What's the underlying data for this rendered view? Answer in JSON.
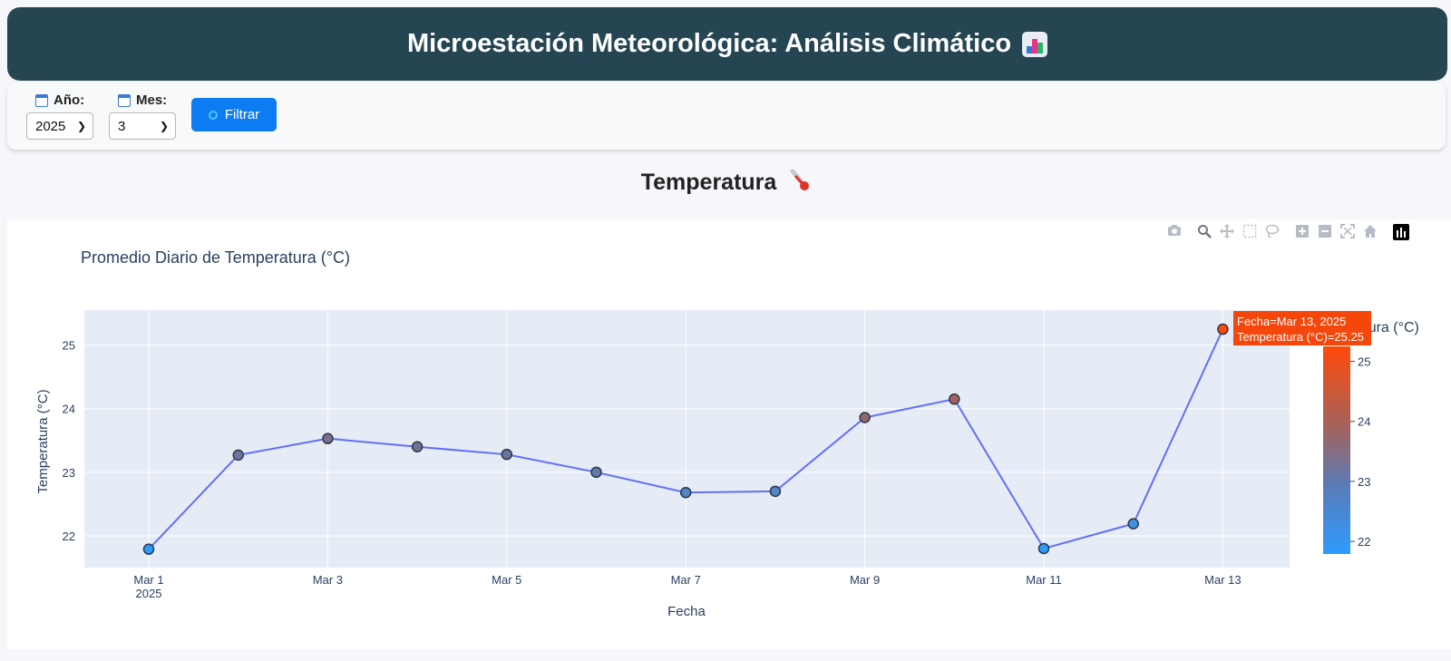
{
  "header": {
    "title": "Microestación Meteorológica: Análisis Climático",
    "title_icon": "bar-chart-emoji-icon"
  },
  "filters": {
    "year_label": "Año:",
    "year_value": "2025",
    "month_label": "Mes:",
    "month_value": "3",
    "filter_button": "Filtrar"
  },
  "section": {
    "title": "Temperatura",
    "icon": "thermometer-icon"
  },
  "modebar": {
    "icons": [
      "camera-icon",
      "zoom-icon",
      "pan-icon",
      "box-select-icon",
      "lasso-select-icon",
      "zoom-in-icon",
      "zoom-out-icon",
      "autoscale-icon",
      "reset-axes-icon",
      "plotly-logo-icon"
    ]
  },
  "tooltip": {
    "line1": "Fecha=Mar 13, 2025",
    "line2": "Temperatura (°C)=25.25"
  },
  "colors": {
    "header_bg": "#254553",
    "button": "#0d7cf2",
    "line": "#636efa",
    "plot_bg": "#e5ecf6",
    "scale_low": "#2e9bff",
    "scale_high": "#ff4a0a"
  },
  "chart_data": {
    "type": "line",
    "title": "Promedio Diario de Temperatura (°C)",
    "xlabel": "Fecha",
    "ylabel": "Temperatura (°C)",
    "colorbar_title": "Temperatura (°C)",
    "x": [
      "Mar 1",
      "Mar 2",
      "Mar 3",
      "Mar 4",
      "Mar 5",
      "Mar 6",
      "Mar 7",
      "Mar 8",
      "Mar 9",
      "Mar 10",
      "Mar 11",
      "Mar 12",
      "Mar 13"
    ],
    "values": [
      21.79,
      23.27,
      23.53,
      23.4,
      23.28,
      23.0,
      22.68,
      22.7,
      23.86,
      24.15,
      21.8,
      22.19,
      25.25
    ],
    "x_ticks": [
      "Mar 1",
      "Mar 3",
      "Mar 5",
      "Mar 7",
      "Mar 9",
      "Mar 11",
      "Mar 13"
    ],
    "x_tick_year": "2025",
    "y_ticks": [
      "22",
      "23",
      "24",
      "25"
    ],
    "ylim": [
      21.5,
      25.55
    ],
    "colorbar_ticks": [
      "22",
      "23",
      "24",
      "25"
    ],
    "colorbar_range": [
      21.79,
      25.25
    ],
    "grid": true,
    "legend": "colorbar right"
  }
}
